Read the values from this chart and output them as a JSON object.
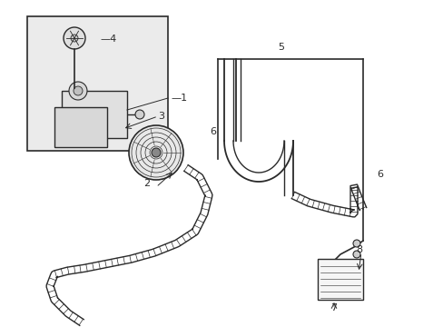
{
  "background_color": "#ffffff",
  "line_color": "#2a2a2a",
  "label_color": "#000000",
  "box_bg": "#ebebeb",
  "figsize": [
    4.89,
    3.6
  ],
  "dpi": 100
}
